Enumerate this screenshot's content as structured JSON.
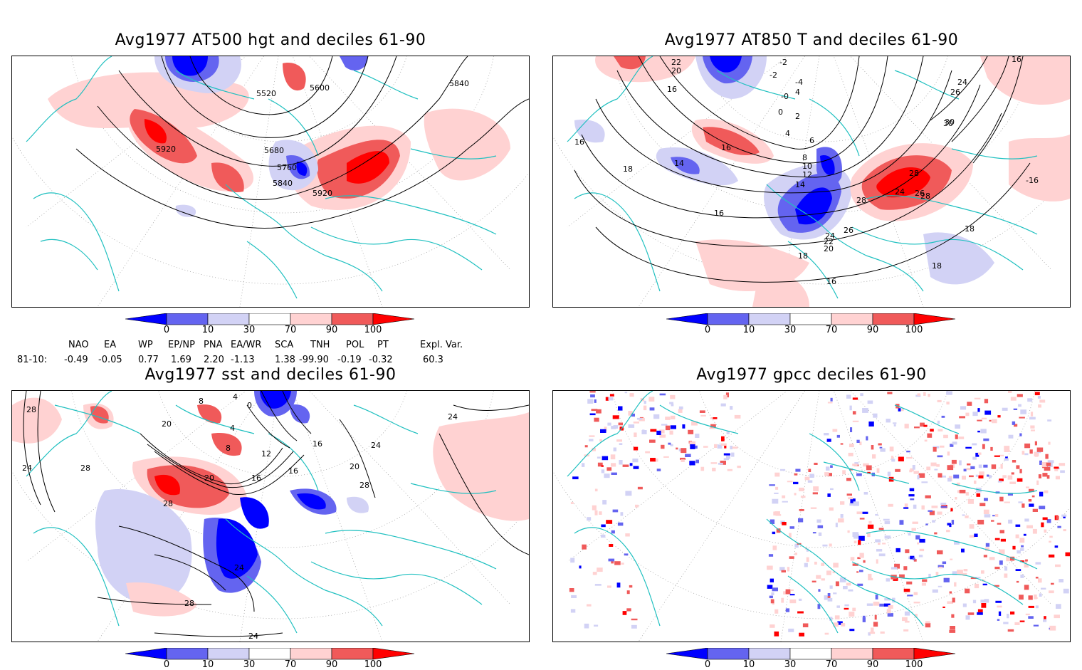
{
  "panels": {
    "tl": {
      "title": "Avg1977 AT500 hgt and deciles 61-90",
      "contour_labels": [
        "5920",
        "5520",
        "5600",
        "5840",
        "5680",
        "5760",
        "5840",
        "5920"
      ]
    },
    "tr": {
      "title": "Avg1977 AT850 T and deciles 61-90",
      "contour_labels": [
        "22",
        "20",
        "16",
        "-2",
        "-4",
        "4",
        "-0",
        "0",
        "2",
        "4",
        "6",
        "16",
        "14",
        "8",
        "10",
        "12",
        "14",
        "16",
        "18",
        "20",
        "22",
        "24",
        "26",
        "28",
        "30",
        "26",
        "24",
        "28",
        "28",
        "18",
        "18",
        "16",
        "18",
        "16",
        "-16",
        "24",
        "26",
        "30",
        "-2",
        "16"
      ]
    },
    "bl": {
      "title": "Avg1977 sst and deciles 61-90",
      "contour_labels": [
        "28",
        "24",
        "28",
        "20",
        "8",
        "4",
        "0",
        "4",
        "12",
        "8",
        "16",
        "16",
        "20",
        "28",
        "24",
        "28",
        "24",
        "16",
        "24",
        "20",
        "28",
        "24"
      ]
    },
    "br": {
      "title": "Avg1977 gpcc deciles 61-90"
    }
  },
  "colorbar": {
    "ticks": [
      "0",
      "10",
      "30",
      "70",
      "90",
      "100"
    ],
    "colors": [
      "#0000ff",
      "#6464f0",
      "#d2d2f5",
      "#ffffff",
      "#ffd2d2",
      "#f05a5a",
      "#ff0000"
    ]
  },
  "indices": {
    "row_label": "81-10:",
    "headers": [
      "NAO",
      "EA",
      "WP",
      "EP/NP",
      "PNA",
      "EA/WR",
      "SCA",
      "TNH",
      "POL",
      "PT",
      "Expl. Var."
    ],
    "values": [
      "-0.49",
      "-0.05",
      "0.77",
      "1.69",
      "2.20",
      "-1.13",
      "1.38",
      "-99.90",
      "-0.19",
      "-0.32",
      "60.3"
    ]
  }
}
